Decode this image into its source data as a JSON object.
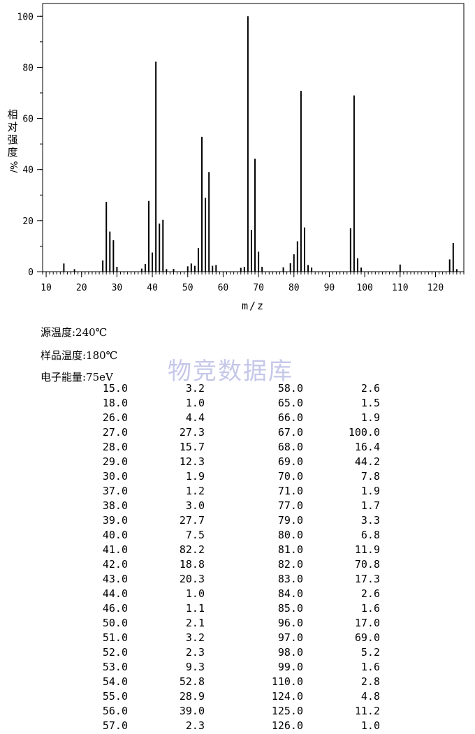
{
  "chart_data": {
    "type": "bar",
    "xlabel": "m/z",
    "ylabel": "相对强度%/",
    "xlim": [
      9,
      128
    ],
    "ylim": [
      0,
      105
    ],
    "x_ticks": [
      10,
      20,
      30,
      40,
      50,
      60,
      70,
      80,
      90,
      100,
      110,
      120
    ],
    "y_ticks": [
      0,
      20,
      40,
      60,
      80,
      100
    ],
    "x": [
      15,
      18,
      26,
      27,
      28,
      29,
      30,
      37,
      38,
      39,
      40,
      41,
      42,
      43,
      44,
      46,
      50,
      51,
      52,
      53,
      54,
      55,
      56,
      57,
      58,
      65,
      66,
      67,
      68,
      69,
      70,
      71,
      77,
      79,
      80,
      81,
      82,
      83,
      84,
      85,
      96,
      97,
      98,
      99,
      110,
      124,
      125,
      126
    ],
    "values": [
      3.2,
      1.0,
      4.4,
      27.3,
      15.7,
      12.3,
      1.9,
      1.2,
      3.0,
      27.7,
      7.5,
      82.2,
      18.8,
      20.3,
      1.0,
      1.1,
      2.1,
      3.2,
      2.3,
      9.3,
      52.8,
      28.9,
      39.0,
      2.3,
      2.6,
      1.5,
      1.9,
      100.0,
      16.4,
      44.2,
      7.8,
      1.9,
      1.7,
      3.3,
      6.8,
      11.9,
      70.8,
      17.3,
      2.6,
      1.6,
      17.0,
      69.0,
      5.2,
      1.6,
      2.8,
      4.8,
      11.2,
      1.0
    ],
    "grid": false
  },
  "ylabel_chars": [
    "相",
    "对",
    "强",
    "度",
    "%/"
  ],
  "info": {
    "source_temp": "源温度:240℃",
    "sample_temp": "样品温度:180℃",
    "electron_energy": "电子能量:75eV"
  },
  "watermark": "物竞数据库",
  "table": [
    [
      "15.0",
      "3.2",
      "58.0",
      "2.6"
    ],
    [
      "18.0",
      "1.0",
      "65.0",
      "1.5"
    ],
    [
      "26.0",
      "4.4",
      "66.0",
      "1.9"
    ],
    [
      "27.0",
      "27.3",
      "67.0",
      "100.0"
    ],
    [
      "28.0",
      "15.7",
      "68.0",
      "16.4"
    ],
    [
      "29.0",
      "12.3",
      "69.0",
      "44.2"
    ],
    [
      "30.0",
      "1.9",
      "70.0",
      "7.8"
    ],
    [
      "37.0",
      "1.2",
      "71.0",
      "1.9"
    ],
    [
      "38.0",
      "3.0",
      "77.0",
      "1.7"
    ],
    [
      "39.0",
      "27.7",
      "79.0",
      "3.3"
    ],
    [
      "40.0",
      "7.5",
      "80.0",
      "6.8"
    ],
    [
      "41.0",
      "82.2",
      "81.0",
      "11.9"
    ],
    [
      "42.0",
      "18.8",
      "82.0",
      "70.8"
    ],
    [
      "43.0",
      "20.3",
      "83.0",
      "17.3"
    ],
    [
      "44.0",
      "1.0",
      "84.0",
      "2.6"
    ],
    [
      "46.0",
      "1.1",
      "85.0",
      "1.6"
    ],
    [
      "50.0",
      "2.1",
      "96.0",
      "17.0"
    ],
    [
      "51.0",
      "3.2",
      "97.0",
      "69.0"
    ],
    [
      "52.0",
      "2.3",
      "98.0",
      "5.2"
    ],
    [
      "53.0",
      "9.3",
      "99.0",
      "1.6"
    ],
    [
      "54.0",
      "52.8",
      "110.0",
      "2.8"
    ],
    [
      "55.0",
      "28.9",
      "124.0",
      "4.8"
    ],
    [
      "56.0",
      "39.0",
      "125.0",
      "11.2"
    ],
    [
      "57.0",
      "2.3",
      "126.0",
      "1.0"
    ]
  ]
}
